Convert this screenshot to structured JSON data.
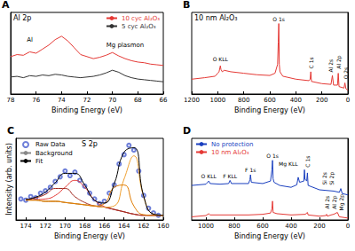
{
  "chart_data": [
    {
      "panel": "A",
      "type": "line",
      "title": "Al 2p",
      "xlabel": "Binding Energy (eV)",
      "xlim": [
        78,
        66
      ],
      "xticks": [
        78,
        76,
        74,
        72,
        70,
        68,
        66
      ],
      "ylim": [
        0,
        120
      ],
      "tick_labels": "x",
      "grid": false,
      "legend": "upper right",
      "x": [
        78,
        77.5,
        77,
        76.5,
        76,
        75.5,
        75,
        74.5,
        74,
        73.5,
        73,
        72.5,
        72,
        71.5,
        71,
        70.5,
        70,
        69.5,
        69,
        68.5,
        68,
        67.5,
        67,
        66.5,
        66
      ],
      "series": [
        {
          "name": "10 cyc Al₂O₃",
          "color": "#e53935",
          "values": [
            55,
            58,
            57,
            62,
            60,
            66,
            72,
            80,
            85,
            78,
            68,
            58,
            55,
            52,
            54,
            57,
            61,
            56,
            52,
            49,
            47,
            46,
            44,
            43,
            42
          ]
        },
        {
          "name": "5 cyc Al₂O₃",
          "color": "#333333",
          "values": [
            25,
            26,
            24,
            27,
            26,
            28,
            27,
            29,
            28,
            26,
            25,
            24,
            25,
            26,
            28,
            31,
            35,
            32,
            27,
            24,
            22,
            21,
            20,
            19,
            18
          ]
        }
      ],
      "annotations": [
        {
          "text": "Al",
          "x": 76.5,
          "y": 80
        },
        {
          "text": "Mg plasmon",
          "x": 69,
          "y": 72
        }
      ]
    },
    {
      "panel": "B",
      "type": "line",
      "title": "10 nm Al₂O₃",
      "xlabel": "Binding Energy (eV)",
      "xlim": [
        1200,
        0
      ],
      "xticks": [
        1200,
        1000,
        800,
        600,
        400,
        200,
        0
      ],
      "ylim": [
        0,
        110
      ],
      "tick_labels": "x",
      "grid": false,
      "x": [
        1200,
        1100,
        1020,
        1000,
        990,
        980,
        975,
        965,
        950,
        900,
        800,
        700,
        600,
        560,
        540,
        535,
        531,
        527,
        522,
        500,
        400,
        300,
        290,
        285,
        280,
        200,
        130,
        119,
        110,
        80,
        74,
        68,
        30,
        23,
        15,
        0
      ],
      "series": [
        {
          "color": "#e53935",
          "values": [
            20,
            22,
            24,
            28,
            30,
            38,
            33,
            30,
            32,
            30,
            28,
            26,
            25,
            28,
            40,
            70,
            95,
            40,
            30,
            24,
            20,
            18,
            20,
            30,
            17,
            14,
            13,
            25,
            12,
            12,
            28,
            10,
            8,
            15,
            7,
            5
          ]
        }
      ],
      "annotations": [
        {
          "text": "O KLL",
          "x": 980,
          "y": 47
        },
        {
          "text": "O 1s",
          "x": 531,
          "y": 101
        },
        {
          "text": "C 1s",
          "x": 285,
          "y": 42
        },
        {
          "text": "Al 2s",
          "x": 130,
          "y": 38
        },
        {
          "text": "Al 2p",
          "x": 70,
          "y": 43
        },
        {
          "text": "O 2s",
          "x": 15,
          "y": 28
        }
      ]
    },
    {
      "panel": "C",
      "type": "line",
      "title": "S 2p",
      "xlabel": "Binding Energy (eV)",
      "ylabel": "Intensity (arb. units)",
      "xlim": [
        175,
        160
      ],
      "xticks": [
        174,
        172,
        170,
        168,
        166,
        164,
        162,
        160
      ],
      "ylim": [
        10,
        80
      ],
      "tick_labels": "x",
      "grid": false,
      "legend": "upper left",
      "x": [
        174,
        173,
        172,
        171,
        170,
        169,
        168,
        167,
        166,
        165,
        164,
        163,
        162,
        161,
        160
      ],
      "series": [
        {
          "name": "Raw Data",
          "type": "scatter",
          "marker": "open circle",
          "color": "#4a5fd0",
          "x": [
            174.5,
            174,
            173.5,
            173,
            172.5,
            172,
            171.5,
            171,
            170.5,
            170,
            169.5,
            169,
            168.5,
            168,
            167.5,
            167,
            166.5,
            166,
            165.5,
            165,
            164.5,
            164,
            163.5,
            163,
            162.5,
            162,
            161.5,
            161,
            160.5
          ],
          "values": [
            28,
            27,
            30,
            29,
            33,
            35,
            38,
            43,
            47,
            52,
            48,
            51,
            44,
            39,
            33,
            28,
            24,
            26,
            33,
            40,
            58,
            66,
            74,
            70,
            52,
            31,
            20,
            16,
            14
          ]
        },
        {
          "name": "Background",
          "type": "line",
          "color": "#888888",
          "values": [
            27,
            27,
            26,
            26,
            25,
            24,
            23,
            22,
            21,
            19,
            17,
            15,
            14,
            14,
            14
          ]
        },
        {
          "type": "line",
          "color": "#e53935",
          "values": [
            27,
            27.5,
            28,
            31,
            38,
            44,
            38,
            27,
            21.5,
            19,
            17,
            15,
            14,
            14,
            14
          ]
        },
        {
          "type": "line",
          "color": "#a0281e",
          "values": [
            27.5,
            29,
            32,
            37,
            37,
            30,
            25,
            22,
            21,
            19,
            17,
            15,
            14,
            14,
            14
          ]
        },
        {
          "type": "line",
          "color": "#f0a030",
          "values": [
            27,
            27,
            26,
            26,
            25,
            24,
            23,
            22,
            21,
            22,
            45,
            65,
            30,
            15,
            14
          ]
        },
        {
          "type": "line",
          "color": "#e07b00",
          "values": [
            27,
            27,
            26,
            26,
            25,
            24,
            23,
            22,
            24,
            38,
            40,
            22,
            14.5,
            14,
            14
          ]
        },
        {
          "name": "Fit",
          "type": "line",
          "color": "#000000",
          "values": [
            27.5,
            29.5,
            34,
            42,
            50,
            50,
            40,
            27,
            24.5,
            41,
            68,
            72,
            30.5,
            15,
            14
          ]
        }
      ]
    },
    {
      "panel": "D",
      "type": "line",
      "xlabel": "Binding Energy (eV)",
      "xlim": [
        1100,
        0
      ],
      "xticks": [
        1000,
        800,
        600,
        400,
        200,
        0
      ],
      "ylim": [
        0,
        130
      ],
      "tick_labels": "x",
      "grid": false,
      "legend": "upper left",
      "series": [
        {
          "name": "No protection",
          "color": "#1a3fbf",
          "x": [
            1100,
            1000,
            980,
            970,
            900,
            840,
            830,
            820,
            700,
            690,
            686,
            680,
            600,
            545,
            535,
            531,
            527,
            520,
            480,
            400,
            360,
            350,
            340,
            310,
            306,
            302,
            290,
            285,
            280,
            200,
            150,
            100,
            60,
            50,
            40,
            0
          ],
          "values": [
            55,
            57,
            62,
            58,
            57,
            58,
            63,
            58,
            58,
            64,
            72,
            60,
            58,
            62,
            80,
            95,
            66,
            60,
            55,
            52,
            56,
            68,
            60,
            62,
            80,
            65,
            62,
            75,
            55,
            48,
            47,
            46,
            44,
            50,
            42,
            40
          ]
        },
        {
          "name": "10 nm Al₂O₃",
          "color": "#e53935",
          "x": [
            1100,
            1000,
            980,
            970,
            800,
            700,
            600,
            545,
            535,
            531,
            527,
            500,
            400,
            300,
            285,
            280,
            200,
            155,
            150,
            145,
            119,
            100,
            74,
            60,
            0
          ],
          "values": [
            5,
            7,
            10,
            8,
            8,
            8,
            9,
            11,
            18,
            30,
            12,
            10,
            8,
            9,
            12,
            8,
            6,
            7,
            9,
            6,
            8,
            9,
            12,
            5,
            3
          ]
        }
      ],
      "annotations": [
        {
          "text": "O KLL",
          "x": 980,
          "y": 70
        },
        {
          "text": "F KLL",
          "x": 830,
          "y": 70
        },
        {
          "text": "F 1s",
          "x": 686,
          "y": 80
        },
        {
          "text": "O 1s",
          "x": 531,
          "y": 103
        },
        {
          "text": "Mg KLL",
          "x": 420,
          "y": 90
        },
        {
          "text": "C 1s",
          "x": 285,
          "y": 93
        },
        {
          "text": "Si 2s",
          "x": 165,
          "y": 66
        },
        {
          "text": "Si 2p",
          "x": 115,
          "y": 66
        },
        {
          "text": "Al 2s",
          "x": 150,
          "y": 28
        },
        {
          "text": "Al 2p",
          "x": 100,
          "y": 28
        },
        {
          "text": "Mg 2p",
          "x": 50,
          "y": 28
        }
      ]
    }
  ]
}
